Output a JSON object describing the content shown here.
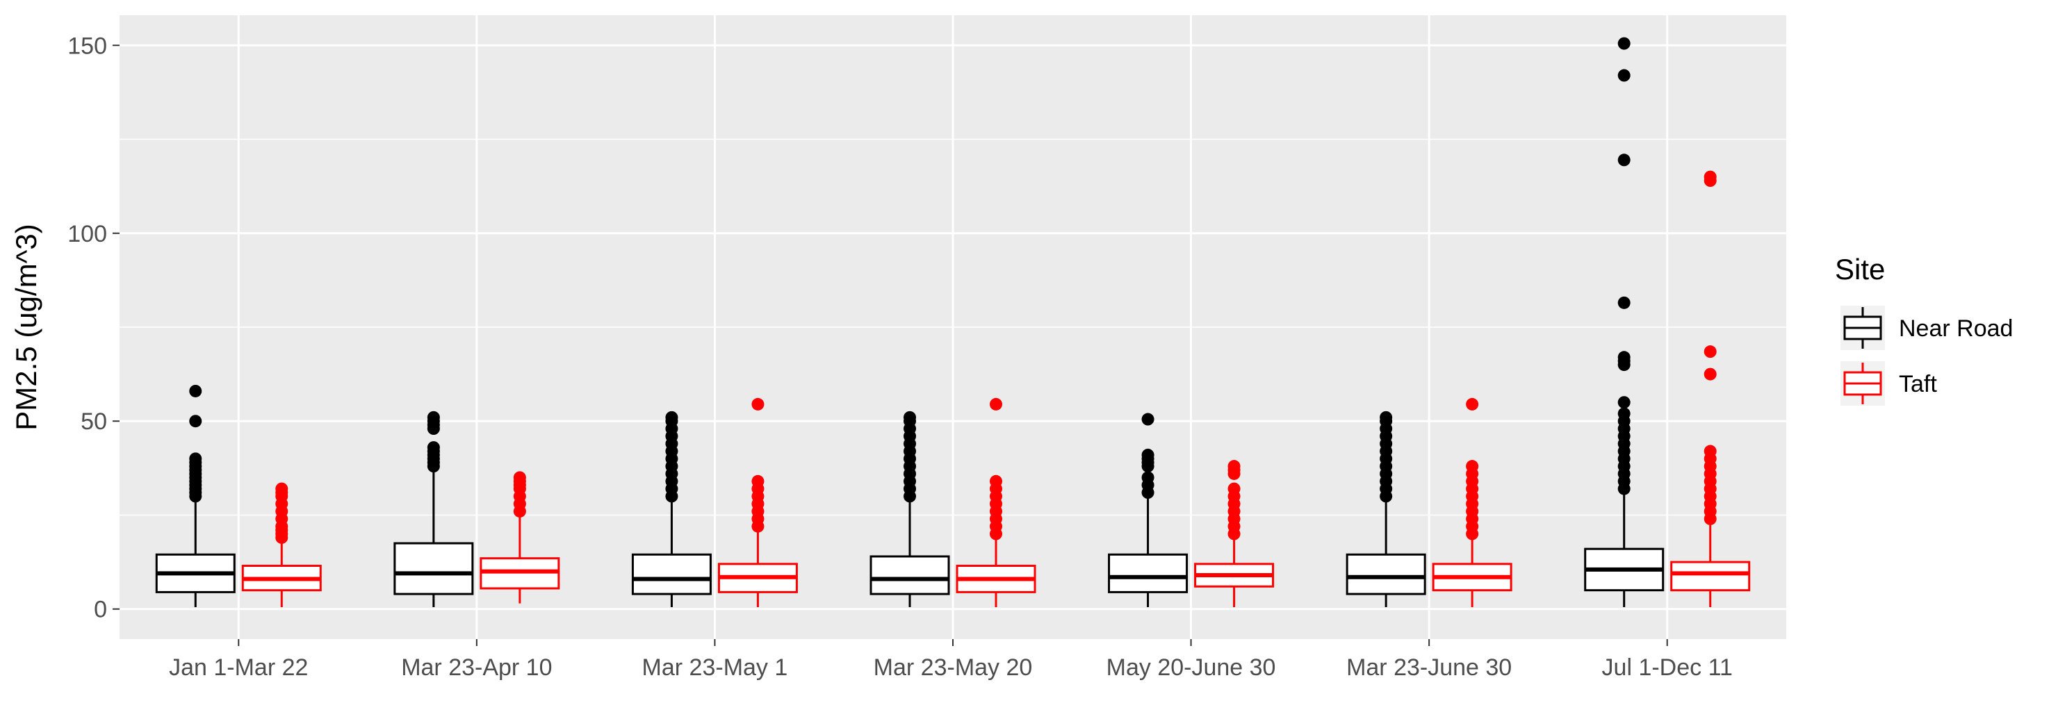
{
  "chart_data": {
    "type": "boxplot",
    "title": "",
    "xlabel": "",
    "ylabel": "PM2.5 (ug/m^3)",
    "ylim": [
      -8,
      158
    ],
    "yticks": [
      0,
      50,
      100,
      150
    ],
    "grid": true,
    "legend_position": "right",
    "legend_title": "Site",
    "categories": [
      "Jan 1-Mar 22",
      "Mar 23-Apr 10",
      "Mar 23-May 1",
      "Mar 23-May 20",
      "May 20-June 30",
      "Mar 23-June 30",
      "Jul 1-Dec 11"
    ],
    "series": [
      {
        "name": "Near Road",
        "color": "#000000",
        "boxes": [
          {
            "min": 0.5,
            "q1": 4.5,
            "median": 9.5,
            "q3": 14.5,
            "max": 29.5,
            "outliers": [
              30,
              31,
              32,
              33,
              34,
              35,
              36,
              37,
              38,
              39,
              40,
              50,
              58
            ]
          },
          {
            "min": 0.5,
            "q1": 4,
            "median": 9.5,
            "q3": 17.5,
            "max": 37,
            "outliers": [
              38,
              39,
              40,
              41,
              42,
              43,
              48,
              49,
              50,
              51
            ]
          },
          {
            "min": 0.5,
            "q1": 4,
            "median": 8,
            "q3": 14.5,
            "max": 29.5,
            "outliers": [
              30,
              32,
              34,
              36,
              38,
              40,
              42,
              44,
              46,
              48,
              50,
              51
            ]
          },
          {
            "min": 0.5,
            "q1": 4,
            "median": 8,
            "q3": 14,
            "max": 29,
            "outliers": [
              30,
              32,
              34,
              36,
              38,
              40,
              42,
              44,
              46,
              48,
              50,
              51
            ]
          },
          {
            "min": 0.5,
            "q1": 4.5,
            "median": 8.5,
            "q3": 14.5,
            "max": 29.5,
            "outliers": [
              31,
              33,
              35,
              38,
              39,
              40,
              41,
              50.5
            ]
          },
          {
            "min": 0.5,
            "q1": 4,
            "median": 8.5,
            "q3": 14.5,
            "max": 29.5,
            "outliers": [
              30,
              32,
              34,
              36,
              38,
              40,
              42,
              44,
              46,
              48,
              50,
              51
            ]
          },
          {
            "min": 0.5,
            "q1": 5,
            "median": 10.5,
            "q3": 16,
            "max": 31,
            "outliers": [
              32,
              34,
              36,
              38,
              40,
              42,
              44,
              46,
              48,
              50,
              52,
              55,
              65,
              66,
              67,
              81.5,
              119.5,
              142,
              150.5
            ]
          }
        ]
      },
      {
        "name": "Taft",
        "color": "#ff0000",
        "boxes": [
          {
            "min": 0.5,
            "q1": 5,
            "median": 8,
            "q3": 11.5,
            "max": 18.5,
            "outliers": [
              19,
              20,
              21,
              22,
              24,
              26,
              28,
              30,
              31,
              32
            ]
          },
          {
            "min": 1.5,
            "q1": 5.5,
            "median": 10,
            "q3": 13.5,
            "max": 25.5,
            "outliers": [
              26,
              28,
              30,
              32,
              33,
              34,
              35
            ]
          },
          {
            "min": 0.5,
            "q1": 4.5,
            "median": 8.5,
            "q3": 12,
            "max": 21,
            "outliers": [
              22,
              24,
              26,
              28,
              30,
              32,
              34,
              54.5
            ]
          },
          {
            "min": 0.5,
            "q1": 4.5,
            "median": 8,
            "q3": 11.5,
            "max": 19.5,
            "outliers": [
              20,
              22,
              24,
              26,
              28,
              30,
              32,
              34,
              54.5
            ]
          },
          {
            "min": 0.5,
            "q1": 6,
            "median": 9,
            "q3": 12,
            "max": 19.5,
            "outliers": [
              20,
              22,
              24,
              26,
              28,
              30,
              32,
              36,
              37,
              38
            ]
          },
          {
            "min": 0.5,
            "q1": 5,
            "median": 8.5,
            "q3": 12,
            "max": 19.5,
            "outliers": [
              20,
              22,
              24,
              26,
              28,
              30,
              32,
              34,
              36,
              38,
              54.5
            ]
          },
          {
            "min": 0.5,
            "q1": 5,
            "median": 9.5,
            "q3": 12.5,
            "max": 23,
            "outliers": [
              24,
              26,
              28,
              30,
              32,
              34,
              36,
              38,
              40,
              42,
              62.5,
              68.5,
              114,
              115
            ]
          }
        ]
      }
    ]
  }
}
